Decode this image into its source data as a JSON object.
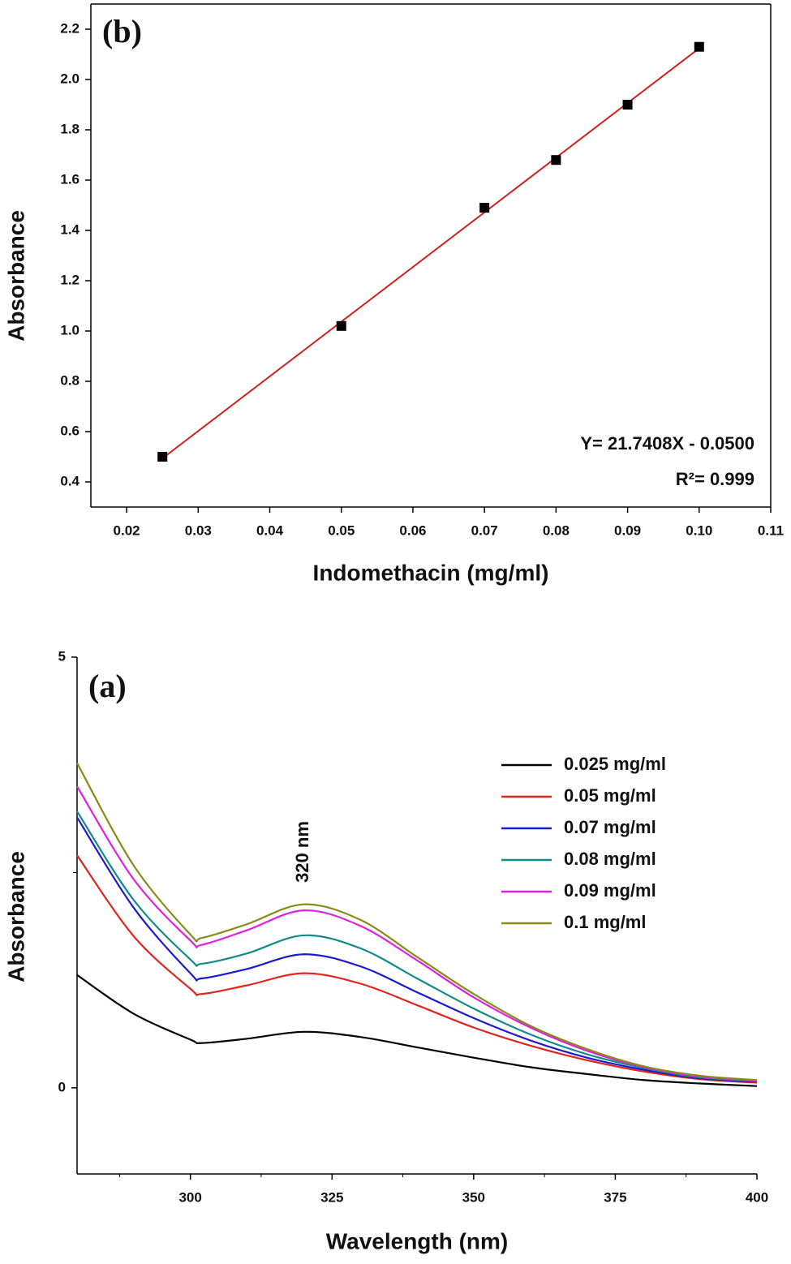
{
  "chart_data": [
    {
      "type": "scatter",
      "panel_label": "(b)",
      "x_label": "Indomethacin (mg/ml)",
      "y_label": "Absorbance",
      "x": [
        0.025,
        0.05,
        0.07,
        0.08,
        0.09,
        0.1
      ],
      "values": [
        0.5,
        1.02,
        1.49,
        1.68,
        1.9,
        2.13
      ],
      "color": "#000000",
      "fit": {
        "color": "#d02020",
        "x": [
          0.025,
          0.1
        ],
        "values": [
          0.4935,
          2.1241
        ]
      },
      "annotations": [
        "Y= 21.7408X - 0.0500",
        "R²= 0.999"
      ],
      "xlim": [
        0.015,
        0.11
      ],
      "xticks": [
        0.02,
        0.03,
        0.04,
        0.05,
        0.06,
        0.07,
        0.08,
        0.09,
        {
          "value": 0.1,
          "label": "0.10"
        },
        0.11
      ],
      "ylim": [
        0.3,
        2.3
      ],
      "yticks": [
        0.4,
        0.6,
        0.8,
        {
          "value": 1,
          "label": "1.0"
        },
        1.2,
        1.4,
        1.6,
        1.8,
        {
          "value": 2,
          "label": "2.0"
        },
        2.2
      ],
      "frame": true
    },
    {
      "type": "line",
      "panel_label": "(a)",
      "x_label": "Wavelength (nm)",
      "y_label": "Absorbance",
      "annotation": "320 nm",
      "x": [
        280,
        290,
        300,
        302,
        310,
        320,
        330,
        340,
        350,
        360,
        370,
        380,
        390,
        400
      ],
      "series": [
        {
          "name": "0.025 mg/ml",
          "color": "#000000",
          "values": [
            1.31,
            0.86,
            0.56,
            0.52,
            0.57,
            0.65,
            0.59,
            0.47,
            0.35,
            0.24,
            0.16,
            0.09,
            0.05,
            0.02
          ]
        },
        {
          "name": "0.05 mg/ml",
          "color": "#e0261e",
          "values": [
            2.7,
            1.76,
            1.15,
            1.09,
            1.19,
            1.33,
            1.21,
            0.96,
            0.7,
            0.49,
            0.32,
            0.19,
            0.1,
            0.06
          ]
        },
        {
          "name": "0.07 mg/ml",
          "color": "#1a1ad0",
          "values": [
            3.14,
            2.09,
            1.33,
            1.27,
            1.38,
            1.55,
            1.41,
            1.11,
            0.81,
            0.55,
            0.35,
            0.21,
            0.11,
            0.07
          ]
        },
        {
          "name": "0.08 mg/ml",
          "color": "#138a8a",
          "values": [
            3.21,
            2.18,
            1.49,
            1.44,
            1.56,
            1.77,
            1.62,
            1.27,
            0.92,
            0.62,
            0.39,
            0.23,
            0.12,
            0.08
          ]
        },
        {
          "name": "0.09 mg/ml",
          "color": "#e020e0",
          "values": [
            3.5,
            2.42,
            1.71,
            1.66,
            1.83,
            2.06,
            1.88,
            1.48,
            1.05,
            0.7,
            0.43,
            0.24,
            0.13,
            0.08
          ]
        },
        {
          "name": "0.1 mg/ml",
          "color": "#8a8a1a",
          "values": [
            3.77,
            2.58,
            1.78,
            1.74,
            1.9,
            2.13,
            1.95,
            1.52,
            1.09,
            0.72,
            0.45,
            0.25,
            0.14,
            0.09
          ]
        }
      ],
      "xlim": [
        280,
        400
      ],
      "xticks": [
        300,
        325,
        350,
        375,
        400
      ],
      "xminorticks": [
        287.5,
        312.5,
        337.5,
        362.5,
        387.5
      ],
      "ylim": [
        -1,
        5
      ],
      "yticks": [
        0,
        5
      ],
      "yminorticks": [
        2.5
      ],
      "legend": "upper right",
      "frame": false
    }
  ]
}
